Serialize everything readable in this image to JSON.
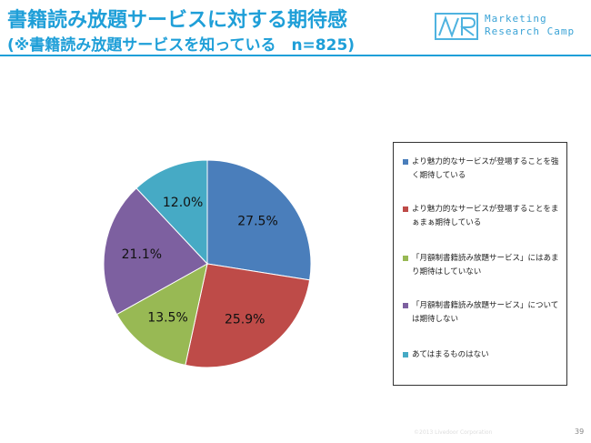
{
  "header": {
    "title": "書籍読み放題サービスに対する期待感",
    "subtitle": "(※書籍読み放題サービスを知っている　n=825)",
    "logo_mark": "MR",
    "logo_line1": "Marketing",
    "logo_line2": "Research Camp",
    "accent_color": "#1f9fd8"
  },
  "chart_data": {
    "type": "pie",
    "start_angle_deg": 0,
    "direction": "clockwise",
    "legend_position": "right",
    "slices": [
      {
        "label": "より魅力的なサービスが登場することを強く期待している",
        "value": 27.5,
        "display": "27.5%",
        "color": "#4a7ebb"
      },
      {
        "label": "より魅力的なサービスが登場することをまぁまぁ期待している",
        "value": 25.9,
        "display": "25.9%",
        "color": "#be4b48"
      },
      {
        "label": "「月額制書籍読み放題サービス」にはあまり期待はしていない",
        "value": 13.5,
        "display": "13.5%",
        "color": "#98b954"
      },
      {
        "label": "「月額制書籍読み放題サービス」については期待しない",
        "value": 21.1,
        "display": "21.1%",
        "color": "#7d60a0"
      },
      {
        "label": "あてはまるものはない",
        "value": 12.0,
        "display": "12.0%",
        "color": "#46aac5"
      }
    ]
  },
  "footer": {
    "copyright": "©2013 Livedoor Corporation",
    "page_number": "39"
  }
}
